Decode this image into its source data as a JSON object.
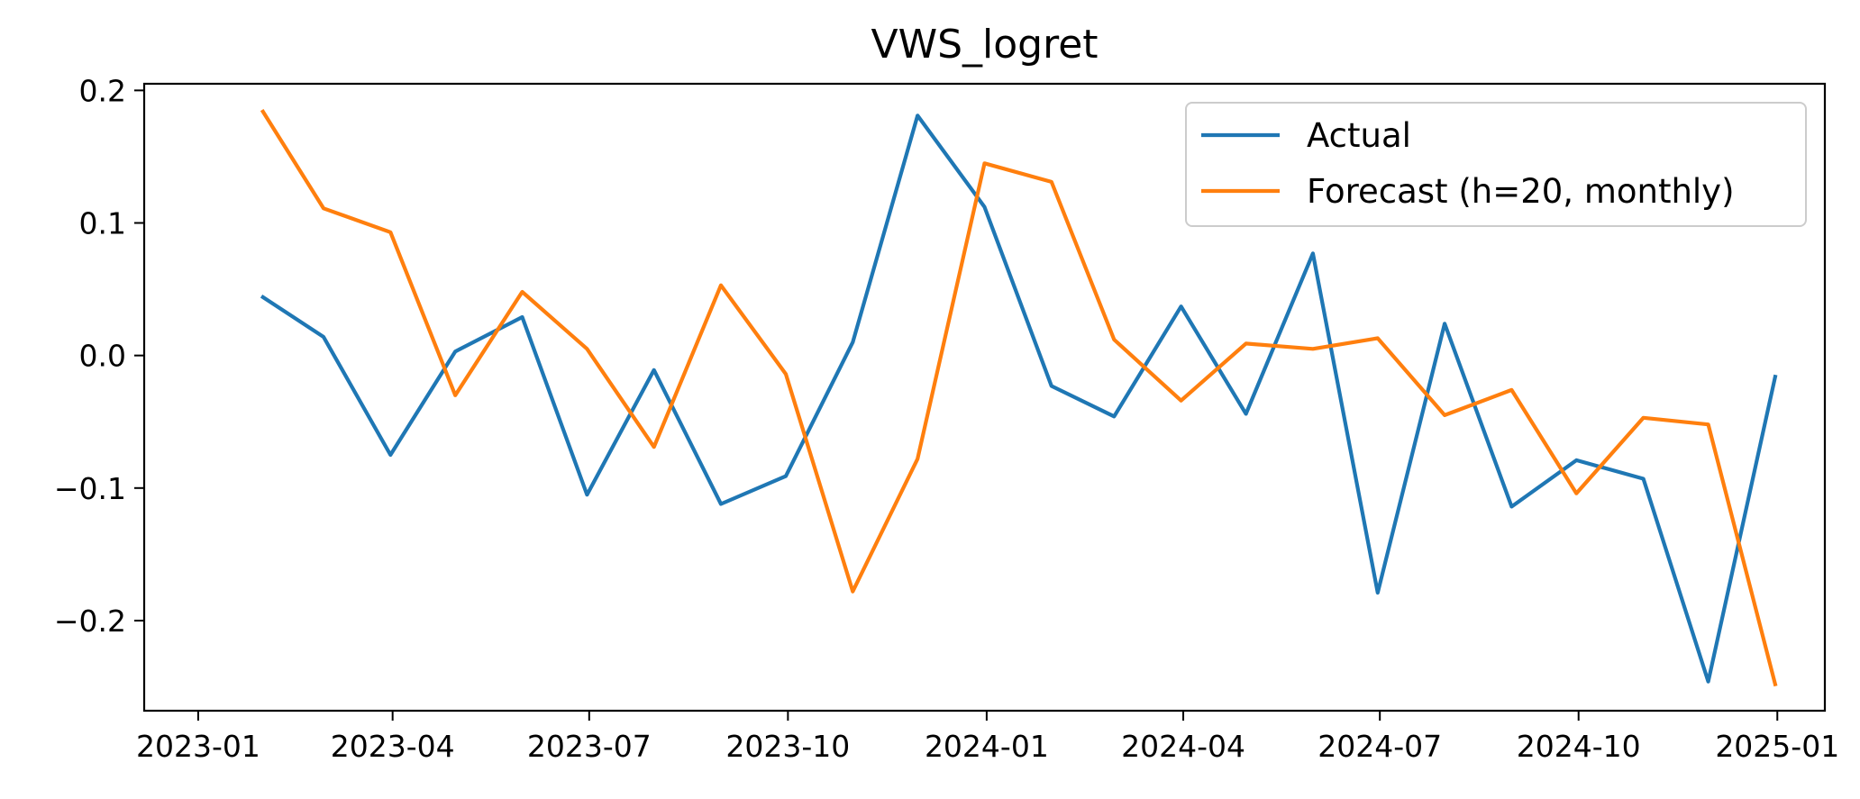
{
  "chart_data": {
    "type": "line",
    "title": "VWS_logret",
    "xlabel": "",
    "ylabel": "",
    "x": [
      "2023-01-31",
      "2023-02-28",
      "2023-03-31",
      "2023-04-30",
      "2023-05-31",
      "2023-06-30",
      "2023-07-31",
      "2023-08-31",
      "2023-09-30",
      "2023-10-31",
      "2023-11-30",
      "2023-12-31",
      "2024-01-31",
      "2024-02-29",
      "2024-03-31",
      "2024-04-30",
      "2024-05-31",
      "2024-06-30",
      "2024-07-31",
      "2024-08-31",
      "2024-09-30",
      "2024-10-31",
      "2024-11-30",
      "2024-12-31"
    ],
    "series": [
      {
        "name": "Actual",
        "color": "#1f77b4",
        "values": [
          0.044,
          0.014,
          -0.075,
          0.003,
          0.029,
          -0.105,
          -0.011,
          -0.112,
          -0.091,
          0.01,
          0.181,
          0.112,
          -0.023,
          -0.046,
          0.037,
          -0.044,
          0.077,
          -0.179,
          0.024,
          -0.114,
          -0.079,
          -0.093,
          -0.246,
          -0.016
        ]
      },
      {
        "name": "Forecast (h=20, monthly)",
        "color": "#ff7f0e",
        "values": [
          0.184,
          0.111,
          0.093,
          -0.03,
          0.048,
          0.005,
          -0.069,
          0.053,
          -0.014,
          -0.178,
          -0.078,
          0.145,
          0.131,
          0.012,
          -0.034,
          0.009,
          0.005,
          0.013,
          -0.045,
          -0.026,
          -0.104,
          -0.047,
          -0.052,
          -0.248
        ]
      }
    ],
    "xlim": [
      "2022-12-07",
      "2025-01-23"
    ],
    "ylim": [
      -0.268,
      0.205
    ],
    "xticks": [
      "2023-01-01",
      "2023-04-01",
      "2023-07-01",
      "2023-10-01",
      "2024-01-01",
      "2024-04-01",
      "2024-07-01",
      "2024-10-01",
      "2025-01-01"
    ],
    "xtick_labels": [
      "2023-01",
      "2023-04",
      "2023-07",
      "2023-10",
      "2024-01",
      "2024-04",
      "2024-07",
      "2024-10",
      "2025-01"
    ],
    "yticks": [
      0.2,
      0.1,
      0.0,
      -0.1,
      -0.2
    ],
    "ytick_labels": [
      "0.2",
      "0.1",
      "0.0",
      "−0.1",
      "−0.2"
    ],
    "grid": false,
    "legend": "upper right"
  }
}
